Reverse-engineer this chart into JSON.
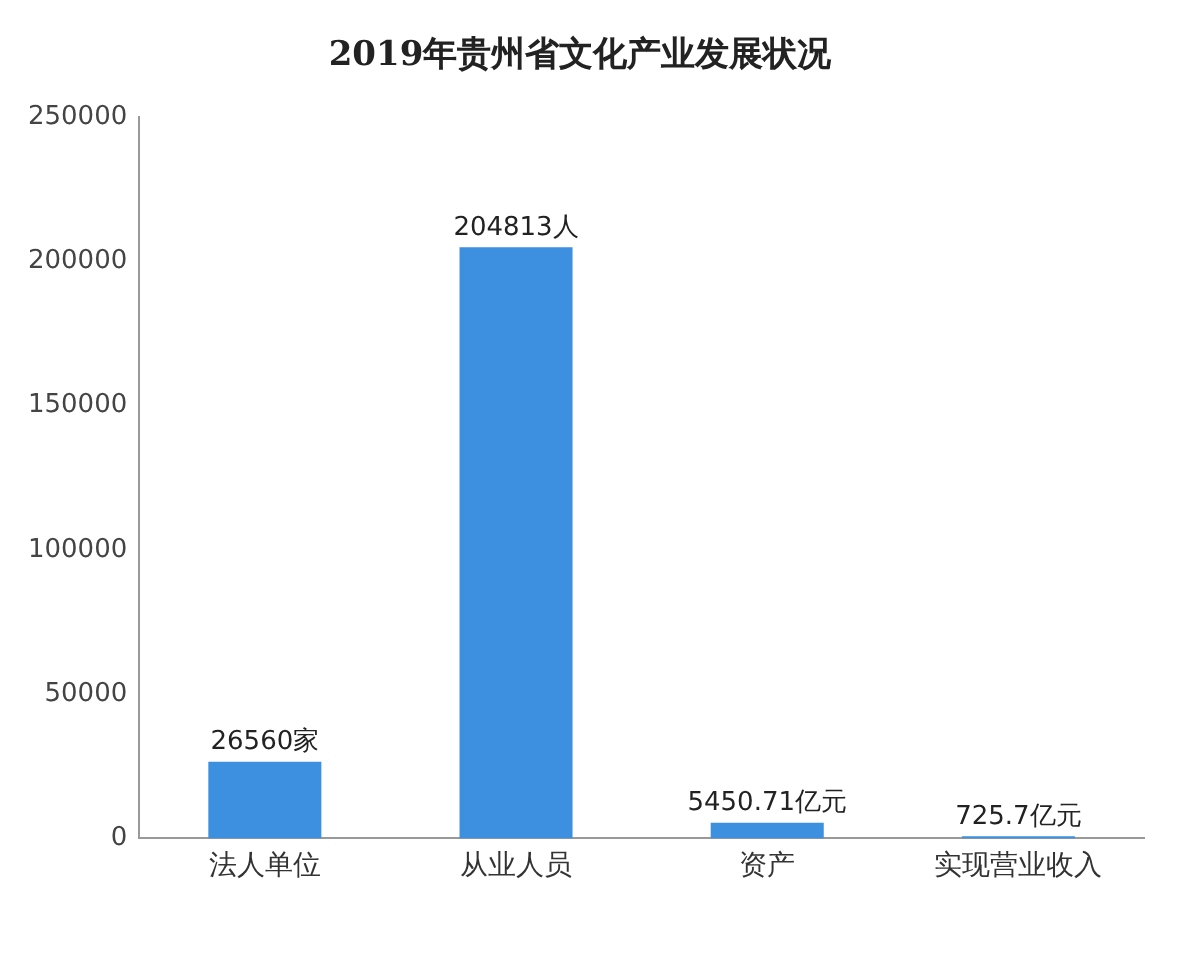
{
  "chart_data": {
    "type": "bar",
    "title": "2019年贵州省文化产业发展状况",
    "categories": [
      "法人单位",
      "从业人员",
      "资产",
      "实现营业收入"
    ],
    "values": [
      26560,
      204813,
      5450.71,
      725.7
    ],
    "value_labels": [
      "26560家",
      "204813人",
      "5450.71亿元",
      "725.7亿元"
    ],
    "color": "#3d8fe0",
    "ylim": [
      0,
      250000
    ],
    "yticks": [
      0,
      50000,
      100000,
      150000,
      200000,
      250000
    ],
    "grid": false,
    "legend": false
  }
}
